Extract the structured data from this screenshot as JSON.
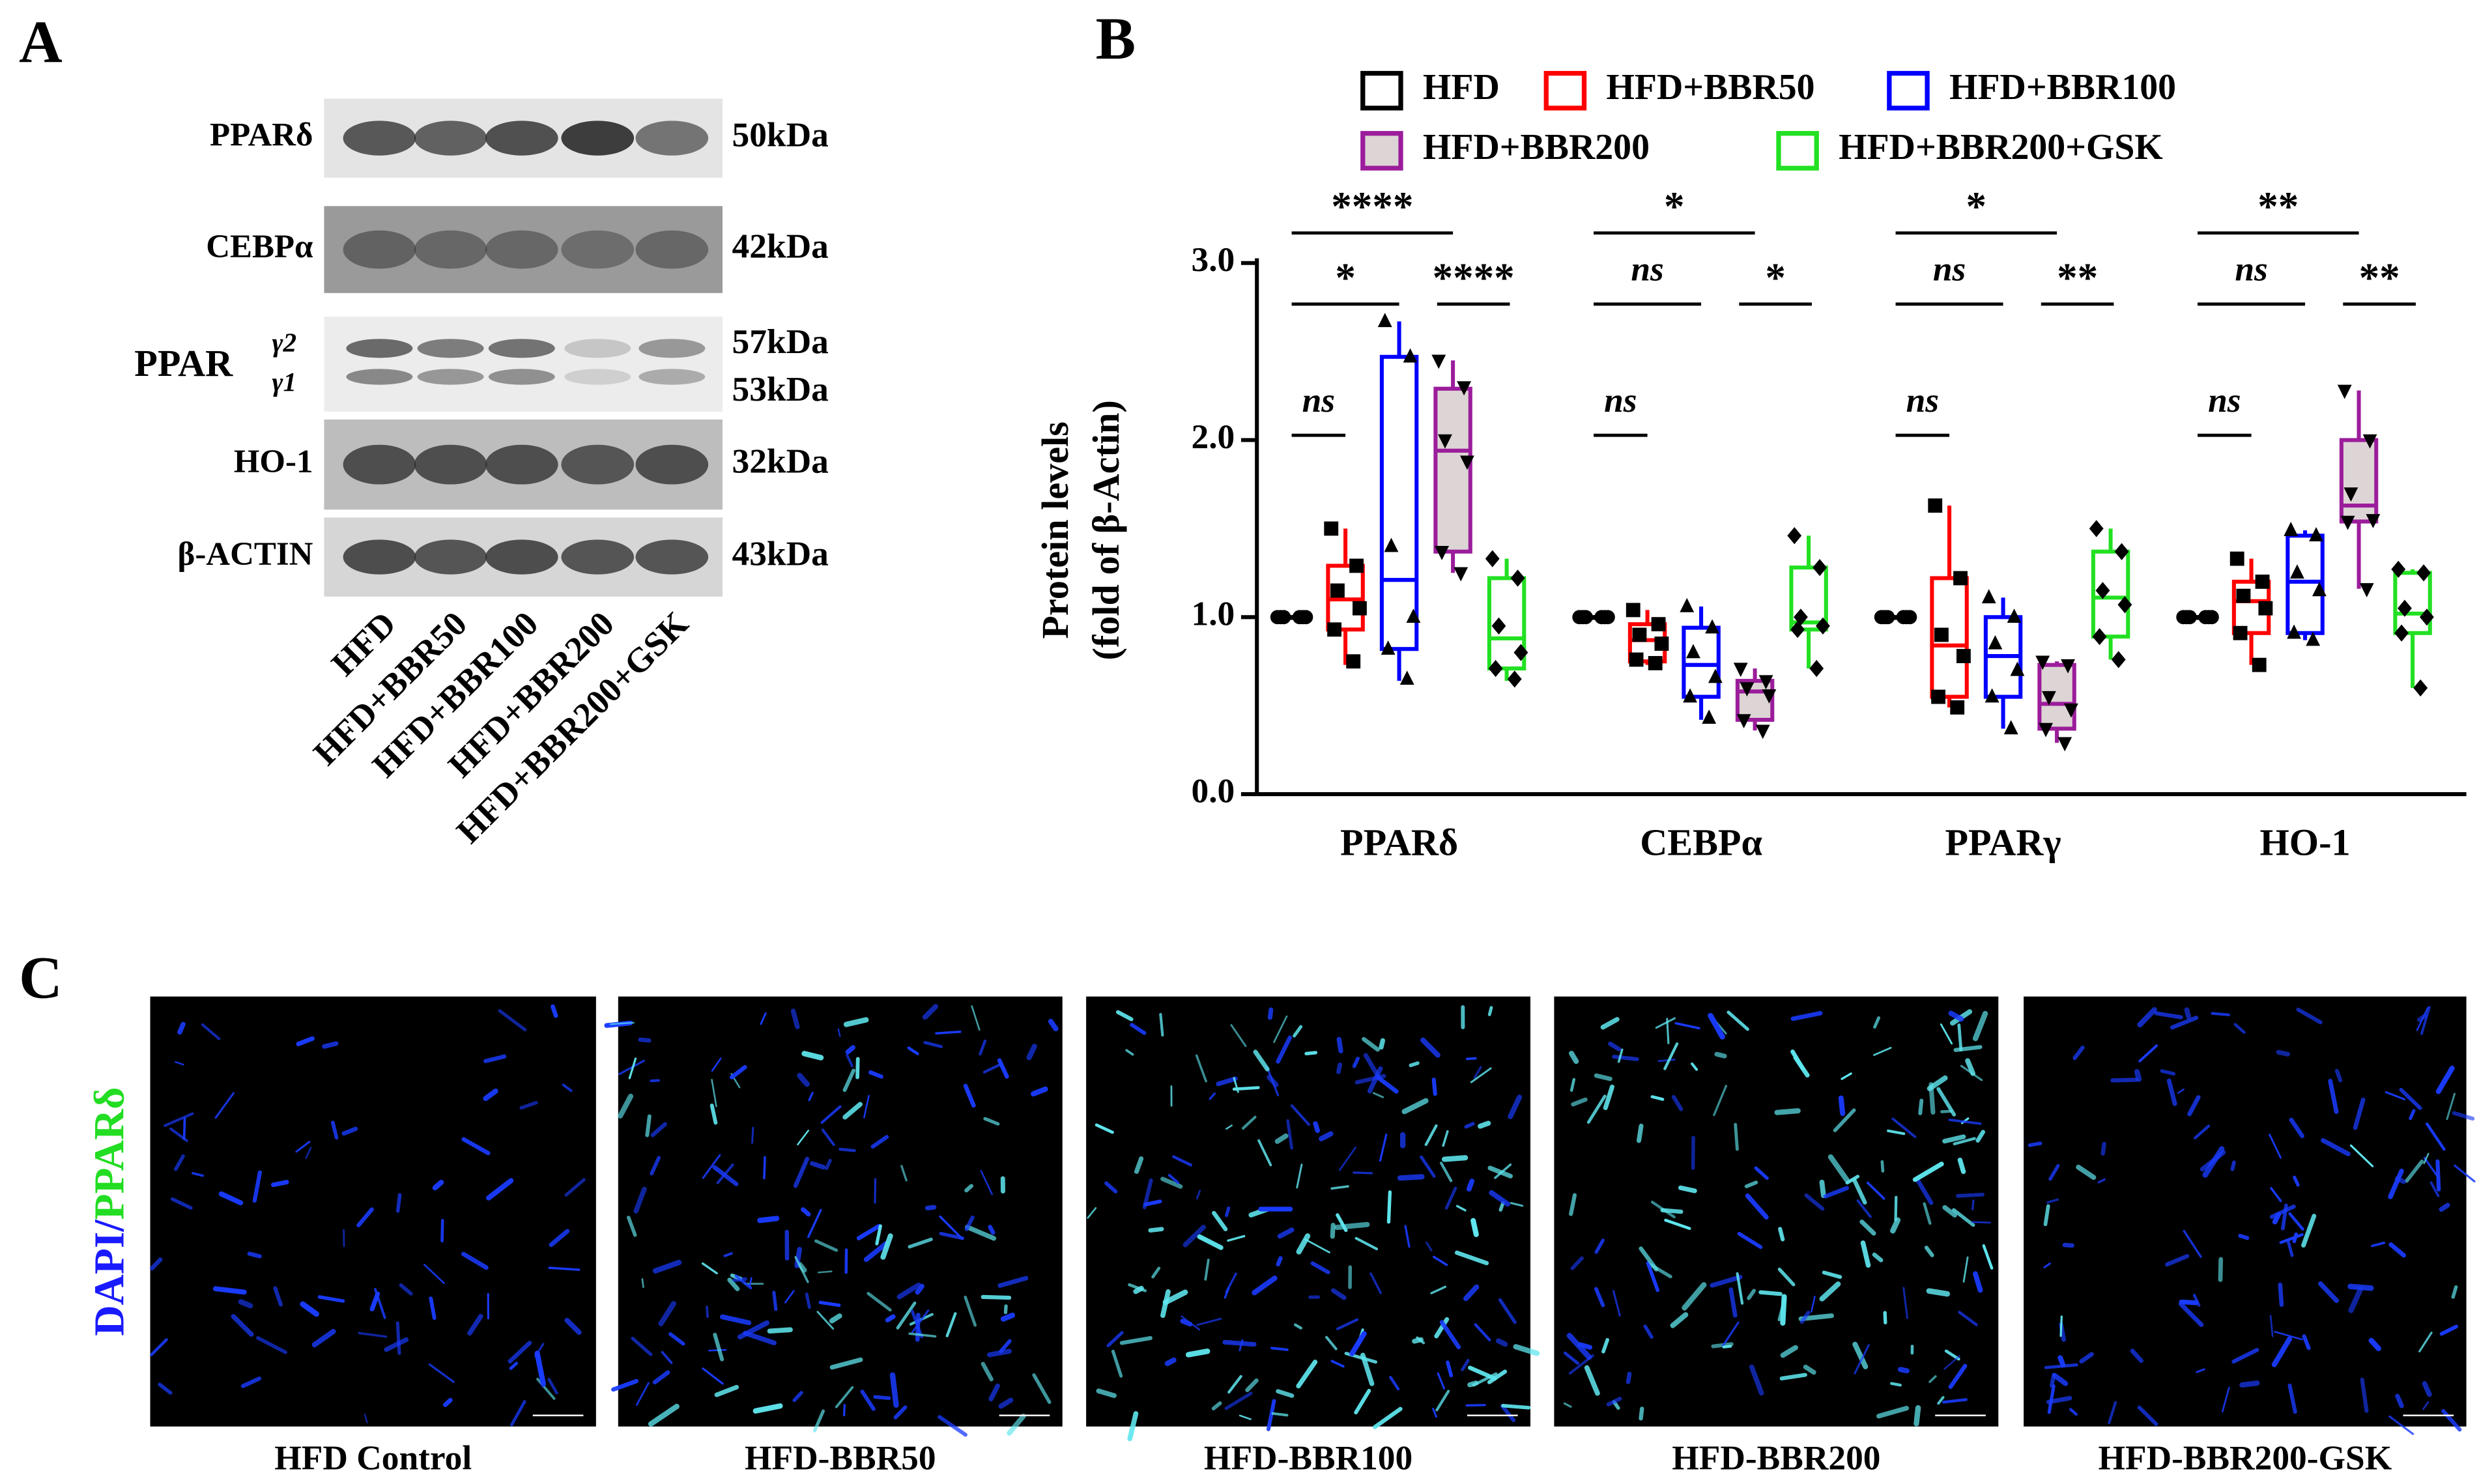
{
  "panel_labels": {
    "a": "A",
    "b": "B",
    "c": "C"
  },
  "blot": {
    "rows": [
      {
        "label": "PPARδ",
        "sizes": [
          "50kDa"
        ]
      },
      {
        "label": "CEBPα",
        "sizes": [
          "42kDa"
        ]
      },
      {
        "label": "PPAR",
        "sup": "γ2",
        "sub": "γ1",
        "sizes": [
          "57kDa",
          "53kDa"
        ]
      },
      {
        "label": "HO-1",
        "sizes": [
          "32kDa"
        ]
      },
      {
        "label": "β-ACTIN",
        "sizes": [
          "43kDa"
        ]
      }
    ],
    "lanes": [
      "HFD",
      "HFD+BBR50",
      "HFD+BBR100",
      "HFD+BBR200",
      "HFD+BBR200+GSK"
    ]
  },
  "chart_data": {
    "type": "box",
    "y_label": [
      "Protein levels",
      "(fold of β-Actin)"
    ],
    "categories": [
      "PPARδ",
      "CEBPα",
      "PPARγ",
      "HO-1"
    ],
    "ylim": [
      0,
      3
    ],
    "yticks": [
      {
        "value": 0,
        "label": "0.0"
      },
      {
        "value": 1,
        "label": "1.0"
      },
      {
        "value": 2,
        "label": "2.0"
      },
      {
        "value": 3,
        "label": "3.0"
      }
    ],
    "significance": [
      [
        "ns",
        "*",
        "****",
        "****"
      ],
      [
        "ns",
        "ns",
        "*",
        "*"
      ],
      [
        "ns",
        "ns",
        "**",
        "*"
      ],
      [
        "ns",
        "ns",
        "**",
        "**"
      ]
    ],
    "series": [
      {
        "name": "HFD",
        "color": "#000000",
        "fill": "#ffffff",
        "marker": "circle",
        "boxes": [
          {
            "min": 1,
            "q1": 1,
            "median": 1,
            "q3": 1,
            "max": 1,
            "points": [
              1,
              1,
              1,
              1,
              1,
              1
            ]
          },
          {
            "min": 1,
            "q1": 1,
            "median": 1,
            "q3": 1,
            "max": 1,
            "points": [
              1,
              1,
              1,
              1,
              1,
              1
            ]
          },
          {
            "min": 1,
            "q1": 1,
            "median": 1,
            "q3": 1,
            "max": 1,
            "points": [
              1,
              1,
              1,
              1,
              1,
              1
            ]
          },
          {
            "min": 1,
            "q1": 1,
            "median": 1,
            "q3": 1,
            "max": 1,
            "points": [
              1,
              1,
              1,
              1,
              1,
              1
            ]
          }
        ]
      },
      {
        "name": "HFD+BBR50",
        "color": "#ff0000",
        "fill": "#ffffff",
        "marker": "square",
        "boxes": [
          {
            "min": 0.73,
            "q1": 0.93,
            "median": 1.1,
            "q3": 1.29,
            "max": 1.5,
            "points": [
              1.5,
              1.29,
              1.15,
              1.05,
              0.93,
              0.75
            ]
          },
          {
            "min": 0.73,
            "q1": 0.75,
            "median": 0.87,
            "q3": 0.96,
            "max": 1.04,
            "points": [
              1.04,
              0.96,
              0.9,
              0.85,
              0.76,
              0.74
            ]
          },
          {
            "min": 0.49,
            "q1": 0.55,
            "median": 0.84,
            "q3": 1.22,
            "max": 1.63,
            "points": [
              1.63,
              1.22,
              0.9,
              0.78,
              0.55,
              0.49
            ]
          },
          {
            "min": 0.73,
            "q1": 0.91,
            "median": 1.09,
            "q3": 1.2,
            "max": 1.33,
            "points": [
              1.33,
              1.2,
              1.12,
              1.05,
              0.91,
              0.73
            ]
          }
        ]
      },
      {
        "name": "HFD+BBR100",
        "color": "#0000ff",
        "fill": "#ffffff",
        "marker": "triangle",
        "boxes": [
          {
            "min": 0.64,
            "q1": 0.82,
            "median": 1.21,
            "q3": 2.47,
            "max": 2.67,
            "points": [
              2.67,
              2.47,
              1.4,
              1.0,
              0.82,
              0.65
            ]
          },
          {
            "min": 0.42,
            "q1": 0.55,
            "median": 0.73,
            "q3": 0.94,
            "max": 1.06,
            "points": [
              1.06,
              0.94,
              0.8,
              0.66,
              0.55,
              0.43
            ]
          },
          {
            "min": 0.37,
            "q1": 0.55,
            "median": 0.78,
            "q3": 1.0,
            "max": 1.11,
            "points": [
              1.11,
              1.0,
              0.85,
              0.7,
              0.55,
              0.37
            ]
          },
          {
            "min": 0.87,
            "q1": 0.91,
            "median": 1.2,
            "q3": 1.46,
            "max": 1.49,
            "points": [
              1.49,
              1.46,
              1.25,
              1.15,
              0.91,
              0.87
            ]
          }
        ]
      },
      {
        "name": "HFD+BBR200",
        "color": "#9b1d9b",
        "fill": "#ddd5d5",
        "marker": "triangle-down",
        "boxes": [
          {
            "min": 1.25,
            "q1": 1.37,
            "median": 1.94,
            "q3": 2.29,
            "max": 2.45,
            "points": [
              2.45,
              2.3,
              2.0,
              1.88,
              1.37,
              1.25
            ]
          },
          {
            "min": 0.36,
            "q1": 0.42,
            "median": 0.58,
            "q3": 0.64,
            "max": 0.71,
            "points": [
              0.71,
              0.64,
              0.6,
              0.56,
              0.42,
              0.36
            ]
          },
          {
            "min": 0.29,
            "q1": 0.37,
            "median": 0.51,
            "q3": 0.73,
            "max": 0.75,
            "points": [
              0.75,
              0.73,
              0.55,
              0.48,
              0.37,
              0.29
            ]
          },
          {
            "min": 1.16,
            "q1": 1.54,
            "median": 1.63,
            "q3": 2.0,
            "max": 2.28,
            "points": [
              2.28,
              2.0,
              1.7,
              1.55,
              1.54,
              1.16
            ]
          }
        ]
      },
      {
        "name": "HFD+BBR200+GSK",
        "color": "#22e022",
        "fill": "#ffffff",
        "marker": "diamond",
        "boxes": [
          {
            "min": 0.64,
            "q1": 0.71,
            "median": 0.88,
            "q3": 1.22,
            "max": 1.33,
            "points": [
              1.33,
              1.22,
              0.95,
              0.8,
              0.71,
              0.65
            ]
          },
          {
            "min": 0.71,
            "q1": 0.93,
            "median": 0.97,
            "q3": 1.28,
            "max": 1.46,
            "points": [
              1.46,
              1.28,
              1.0,
              0.95,
              0.93,
              0.71
            ]
          },
          {
            "min": 0.76,
            "q1": 0.89,
            "median": 1.11,
            "q3": 1.37,
            "max": 1.5,
            "points": [
              1.5,
              1.37,
              1.15,
              1.07,
              0.89,
              0.76
            ]
          },
          {
            "min": 0.6,
            "q1": 0.91,
            "median": 1.02,
            "q3": 1.25,
            "max": 1.27,
            "points": [
              1.27,
              1.25,
              1.05,
              1.0,
              0.91,
              0.6
            ]
          }
        ]
      }
    ]
  },
  "images": {
    "stain_label": [
      "DAPI/",
      "PPARδ"
    ],
    "captions": [
      "HFD Control",
      "HFD-BBR50",
      "HFD-BBR100",
      "HFD-BBR200",
      "HFD-BBR200-GSK"
    ]
  }
}
